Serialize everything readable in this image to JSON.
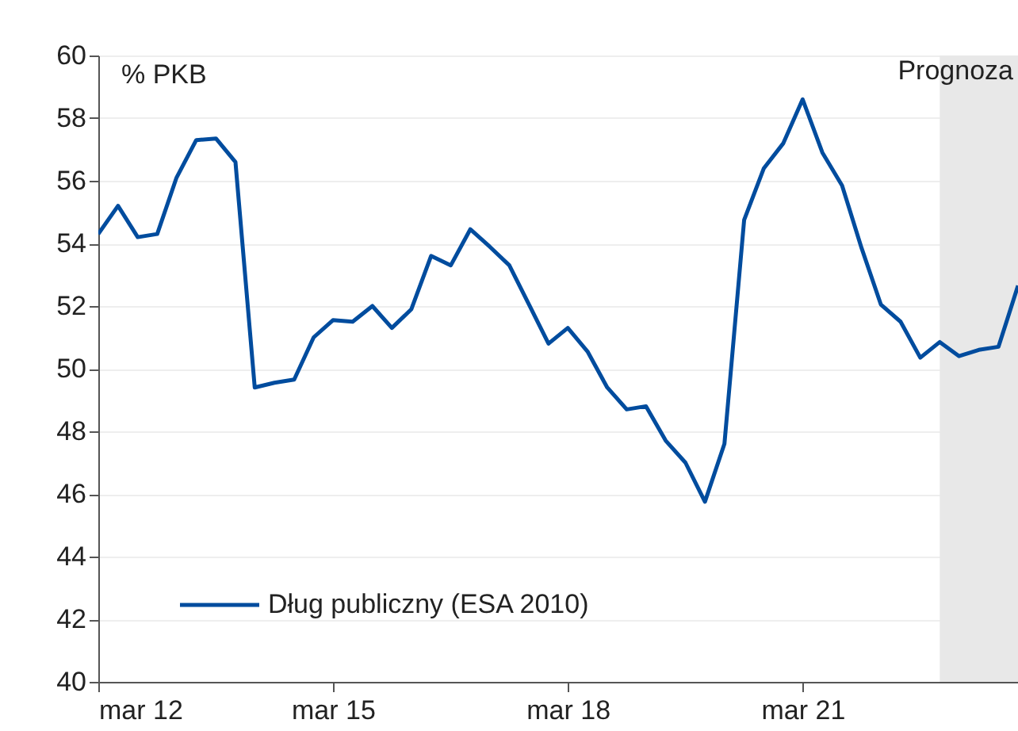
{
  "chart_data": {
    "type": "line",
    "ylabel": "% PKB",
    "x": [
      "2012-03",
      "2012-06",
      "2012-09",
      "2012-12",
      "2013-03",
      "2013-06",
      "2013-09",
      "2013-12",
      "2014-03",
      "2014-06",
      "2014-09",
      "2014-12",
      "2015-03",
      "2015-06",
      "2015-09",
      "2015-12",
      "2016-03",
      "2016-06",
      "2016-09",
      "2016-12",
      "2017-03",
      "2017-06",
      "2017-09",
      "2017-12",
      "2018-03",
      "2018-06",
      "2018-09",
      "2018-12",
      "2019-03",
      "2019-06",
      "2019-09",
      "2019-12",
      "2020-03",
      "2020-06",
      "2020-09",
      "2020-12",
      "2021-03",
      "2021-06",
      "2021-09",
      "2021-12",
      "2022-03",
      "2022-06",
      "2022-09",
      "2022-12",
      "2023-03",
      "2023-06",
      "2023-09",
      "2023-12"
    ],
    "series": [
      {
        "name": "Dług publiczny (ESA 2010)",
        "color": "#004c9e",
        "values": [
          54.3,
          55.2,
          54.2,
          54.3,
          56.1,
          57.3,
          57.35,
          56.6,
          49.4,
          49.55,
          49.65,
          51.0,
          51.55,
          51.5,
          52.0,
          51.3,
          51.9,
          53.6,
          53.3,
          54.45,
          53.9,
          53.3,
          52.05,
          50.8,
          51.3,
          50.55,
          49.4,
          48.7,
          48.8,
          47.7,
          47.0,
          45.75,
          47.6,
          54.75,
          56.4,
          57.2,
          58.6,
          56.9,
          55.85,
          53.85,
          52.05,
          51.5,
          50.35,
          50.85,
          50.4,
          50.6,
          50.7,
          52.65
        ]
      }
    ],
    "xlim": [
      "2012-03",
      "2023-12"
    ],
    "xticks": [
      {
        "value": "2012-03",
        "label": "mar 12"
      },
      {
        "value": "2015-03",
        "label": "mar 15"
      },
      {
        "value": "2018-03",
        "label": "mar 18"
      },
      {
        "value": "2021-03",
        "label": "mar 21"
      }
    ],
    "ylim": [
      40,
      60
    ],
    "yticks": [
      40,
      42,
      44,
      46,
      48,
      50,
      52,
      54,
      56,
      58,
      60
    ],
    "bands": [
      {
        "axis": "x",
        "from": "2022-12",
        "to": "2023-12",
        "label": "Prognoza",
        "color": "#e8e8e8"
      }
    ],
    "grid": "y",
    "legend": "bottom left",
    "marker": "none",
    "line_style": "solid"
  }
}
